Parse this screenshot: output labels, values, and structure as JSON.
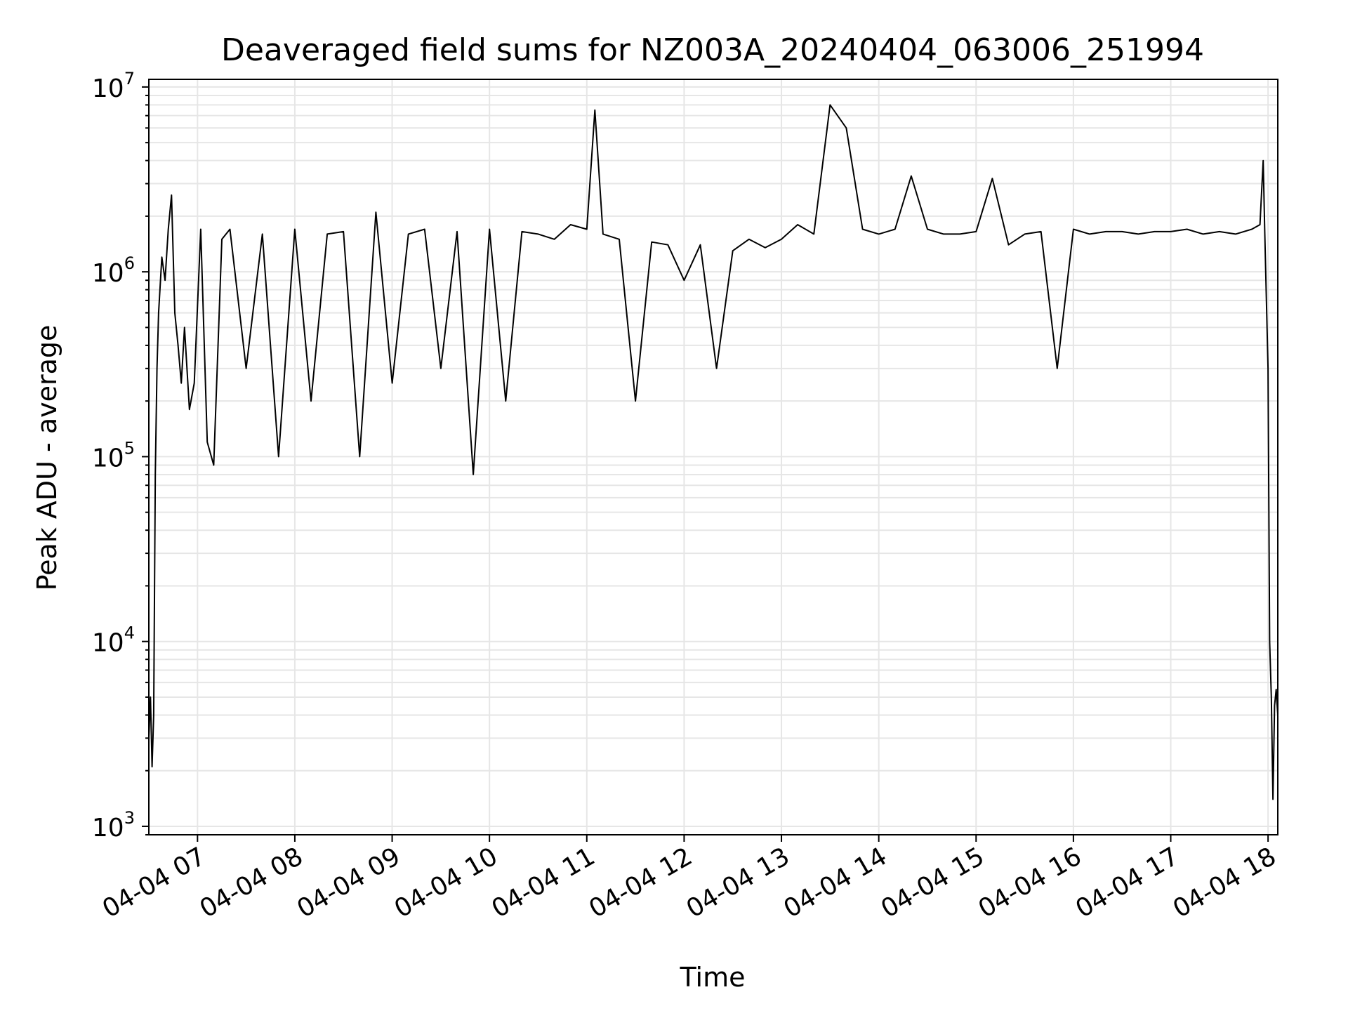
{
  "chart_data": {
    "type": "line",
    "title": "Deaveraged field sums for NZ003A_20240404_063006_251994",
    "xlabel": "Time",
    "ylabel": "Peak ADU - average",
    "yscale": "log",
    "ylim": [
      900,
      11000000
    ],
    "xlim": [
      "2024-04-04 06:30",
      "2024-04-04 18:06"
    ],
    "x_ticks": [
      {
        "value": "2024-04-04 07:00",
        "label": "04-04 07"
      },
      {
        "value": "2024-04-04 08:00",
        "label": "04-04 08"
      },
      {
        "value": "2024-04-04 09:00",
        "label": "04-04 09"
      },
      {
        "value": "2024-04-04 10:00",
        "label": "04-04 10"
      },
      {
        "value": "2024-04-04 11:00",
        "label": "04-04 11"
      },
      {
        "value": "2024-04-04 12:00",
        "label": "04-04 12"
      },
      {
        "value": "2024-04-04 13:00",
        "label": "04-04 13"
      },
      {
        "value": "2024-04-04 14:00",
        "label": "04-04 14"
      },
      {
        "value": "2024-04-04 15:00",
        "label": "04-04 15"
      },
      {
        "value": "2024-04-04 16:00",
        "label": "04-04 16"
      },
      {
        "value": "2024-04-04 17:00",
        "label": "04-04 17"
      },
      {
        "value": "2024-04-04 18:00",
        "label": "04-04 18"
      }
    ],
    "y_ticks": [
      {
        "value": 1000,
        "base": "10",
        "exp": "3"
      },
      {
        "value": 10000,
        "base": "10",
        "exp": "4"
      },
      {
        "value": 100000,
        "base": "10",
        "exp": "5"
      },
      {
        "value": 1000000,
        "base": "10",
        "exp": "6"
      },
      {
        "value": 10000000,
        "base": "10",
        "exp": "7"
      }
    ],
    "grid": true,
    "line_color": "#000000",
    "grid_color": "#e6e6e6",
    "series": [
      {
        "x": [
          "2024-04-04 06:30",
          "2024-04-04 06:31",
          "2024-04-04 06:32",
          "2024-04-04 06:33",
          "2024-04-04 06:34",
          "2024-04-04 06:35",
          "2024-04-04 06:36",
          "2024-04-04 06:38",
          "2024-04-04 06:40",
          "2024-04-04 06:42",
          "2024-04-04 06:44",
          "2024-04-04 06:46",
          "2024-04-04 06:48",
          "2024-04-04 06:50",
          "2024-04-04 06:52",
          "2024-04-04 06:55",
          "2024-04-04 06:58",
          "2024-04-04 07:02",
          "2024-04-04 07:06",
          "2024-04-04 07:10",
          "2024-04-04 07:15",
          "2024-04-04 07:20",
          "2024-04-04 07:30",
          "2024-04-04 07:40",
          "2024-04-04 07:50",
          "2024-04-04 08:00",
          "2024-04-04 08:10",
          "2024-04-04 08:20",
          "2024-04-04 08:30",
          "2024-04-04 08:40",
          "2024-04-04 08:50",
          "2024-04-04 09:00",
          "2024-04-04 09:10",
          "2024-04-04 09:20",
          "2024-04-04 09:30",
          "2024-04-04 09:40",
          "2024-04-04 09:50",
          "2024-04-04 10:00",
          "2024-04-04 10:10",
          "2024-04-04 10:20",
          "2024-04-04 10:30",
          "2024-04-04 10:40",
          "2024-04-04 10:50",
          "2024-04-04 11:00",
          "2024-04-04 11:05",
          "2024-04-04 11:10",
          "2024-04-04 11:20",
          "2024-04-04 11:30",
          "2024-04-04 11:40",
          "2024-04-04 11:50",
          "2024-04-04 12:00",
          "2024-04-04 12:10",
          "2024-04-04 12:20",
          "2024-04-04 12:30",
          "2024-04-04 12:40",
          "2024-04-04 12:50",
          "2024-04-04 13:00",
          "2024-04-04 13:10",
          "2024-04-04 13:20",
          "2024-04-04 13:30",
          "2024-04-04 13:40",
          "2024-04-04 13:50",
          "2024-04-04 14:00",
          "2024-04-04 14:10",
          "2024-04-04 14:20",
          "2024-04-04 14:30",
          "2024-04-04 14:40",
          "2024-04-04 14:50",
          "2024-04-04 15:00",
          "2024-04-04 15:10",
          "2024-04-04 15:20",
          "2024-04-04 15:30",
          "2024-04-04 15:40",
          "2024-04-04 15:50",
          "2024-04-04 16:00",
          "2024-04-04 16:10",
          "2024-04-04 16:20",
          "2024-04-04 16:30",
          "2024-04-04 16:40",
          "2024-04-04 16:50",
          "2024-04-04 17:00",
          "2024-04-04 17:10",
          "2024-04-04 17:20",
          "2024-04-04 17:30",
          "2024-04-04 17:40",
          "2024-04-04 17:50",
          "2024-04-04 17:55",
          "2024-04-04 17:57",
          "2024-04-04 17:58",
          "2024-04-04 18:00",
          "2024-04-04 18:01",
          "2024-04-04 18:02",
          "2024-04-04 18:03",
          "2024-04-04 18:04",
          "2024-04-04 18:05",
          "2024-04-04 18:06"
        ],
        "y": [
          3000,
          5000,
          2100,
          4000,
          80000,
          300000,
          600000,
          1200000,
          900000,
          1700000,
          2600000,
          600000,
          400000,
          250000,
          500000,
          180000,
          250000,
          1700000,
          120000,
          90000,
          1500000,
          1700000,
          300000,
          1600000,
          100000,
          1700000,
          200000,
          1600000,
          1650000,
          100000,
          2100000,
          250000,
          1600000,
          1700000,
          300000,
          1650000,
          80000,
          1700000,
          200000,
          1650000,
          1600000,
          1500000,
          1800000,
          1700000,
          7500000,
          1600000,
          1500000,
          200000,
          1450000,
          1400000,
          900000,
          1400000,
          300000,
          1300000,
          1500000,
          1350000,
          1500000,
          1800000,
          1600000,
          8000000,
          6000000,
          1700000,
          1600000,
          1700000,
          3300000,
          1700000,
          1600000,
          1600000,
          1650000,
          3200000,
          1400000,
          1600000,
          1650000,
          300000,
          1700000,
          1600000,
          1650000,
          1650000,
          1600000,
          1650000,
          1650000,
          1700000,
          1600000,
          1650000,
          1600000,
          1700000,
          1800000,
          4000000,
          1600000,
          300000,
          10000,
          5000,
          1400,
          4500,
          5500,
          4000
        ]
      }
    ]
  }
}
